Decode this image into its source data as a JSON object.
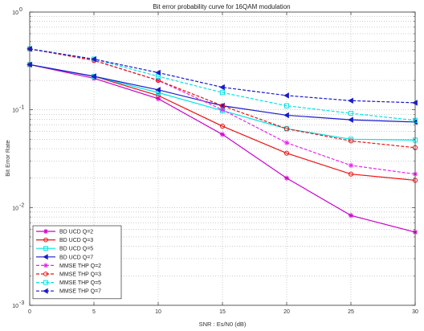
{
  "chart_data": {
    "type": "line",
    "title": "Bit error probability curve for 16QAM modulation",
    "xlabel": "SNR : Es/N0 (dB)",
    "ylabel": "Bit Error Rate",
    "x": [
      0,
      5,
      10,
      15,
      20,
      25,
      30
    ],
    "x_tick_labels": [
      "0",
      "5",
      "10",
      "15",
      "20",
      "25",
      "30"
    ],
    "xlim": [
      0,
      30
    ],
    "ylim": [
      0.001,
      1
    ],
    "y_scale": "log",
    "y_tick_labels": [
      {
        "base": "10",
        "exp": "0",
        "value": 1
      },
      {
        "base": "10",
        "exp": "-1",
        "value": 0.1
      },
      {
        "base": "10",
        "exp": "-2",
        "value": 0.01
      },
      {
        "base": "10",
        "exp": "-3",
        "value": 0.001
      }
    ],
    "grid": "on (dotted, major and minor)",
    "legend_position": "bottom-left",
    "series": [
      {
        "name": "BD UCD Q=2",
        "color": "#cc00cc",
        "line": "solid",
        "marker": "star",
        "values": [
          0.29,
          0.21,
          0.13,
          0.056,
          0.02,
          0.0083,
          0.0056
        ]
      },
      {
        "name": "BD UCD Q=3",
        "color": "#ee1111",
        "line": "solid",
        "marker": "circle",
        "values": [
          0.29,
          0.22,
          0.14,
          0.068,
          0.036,
          0.022,
          0.019
        ]
      },
      {
        "name": "BD UCD Q=5",
        "color": "#00e5e5",
        "line": "solid",
        "marker": "square",
        "values": [
          0.29,
          0.22,
          0.15,
          0.098,
          0.064,
          0.05,
          0.049
        ]
      },
      {
        "name": "BD UCD Q=7",
        "color": "#1a1acc",
        "line": "solid",
        "marker": "triangle-left",
        "values": [
          0.29,
          0.22,
          0.16,
          0.11,
          0.088,
          0.079,
          0.075
        ]
      },
      {
        "name": "MMSE THP Q=2",
        "color": "#ee22ee",
        "line": "dashed",
        "marker": "star",
        "values": [
          0.42,
          0.32,
          0.2,
          0.1,
          0.046,
          0.027,
          0.022
        ]
      },
      {
        "name": "MMSE THP Q=3",
        "color": "#ee1111",
        "line": "dashed",
        "marker": "circle",
        "values": [
          0.42,
          0.32,
          0.2,
          0.11,
          0.064,
          0.048,
          0.041
        ]
      },
      {
        "name": "MMSE THP Q=5",
        "color": "#00e5e5",
        "line": "dashed",
        "marker": "square",
        "values": [
          0.42,
          0.33,
          0.22,
          0.15,
          0.11,
          0.092,
          0.078
        ]
      },
      {
        "name": "MMSE THP Q=7",
        "color": "#1a1acc",
        "line": "dashed",
        "marker": "triangle-left",
        "values": [
          0.42,
          0.33,
          0.24,
          0.17,
          0.14,
          0.124,
          0.118
        ]
      }
    ]
  }
}
